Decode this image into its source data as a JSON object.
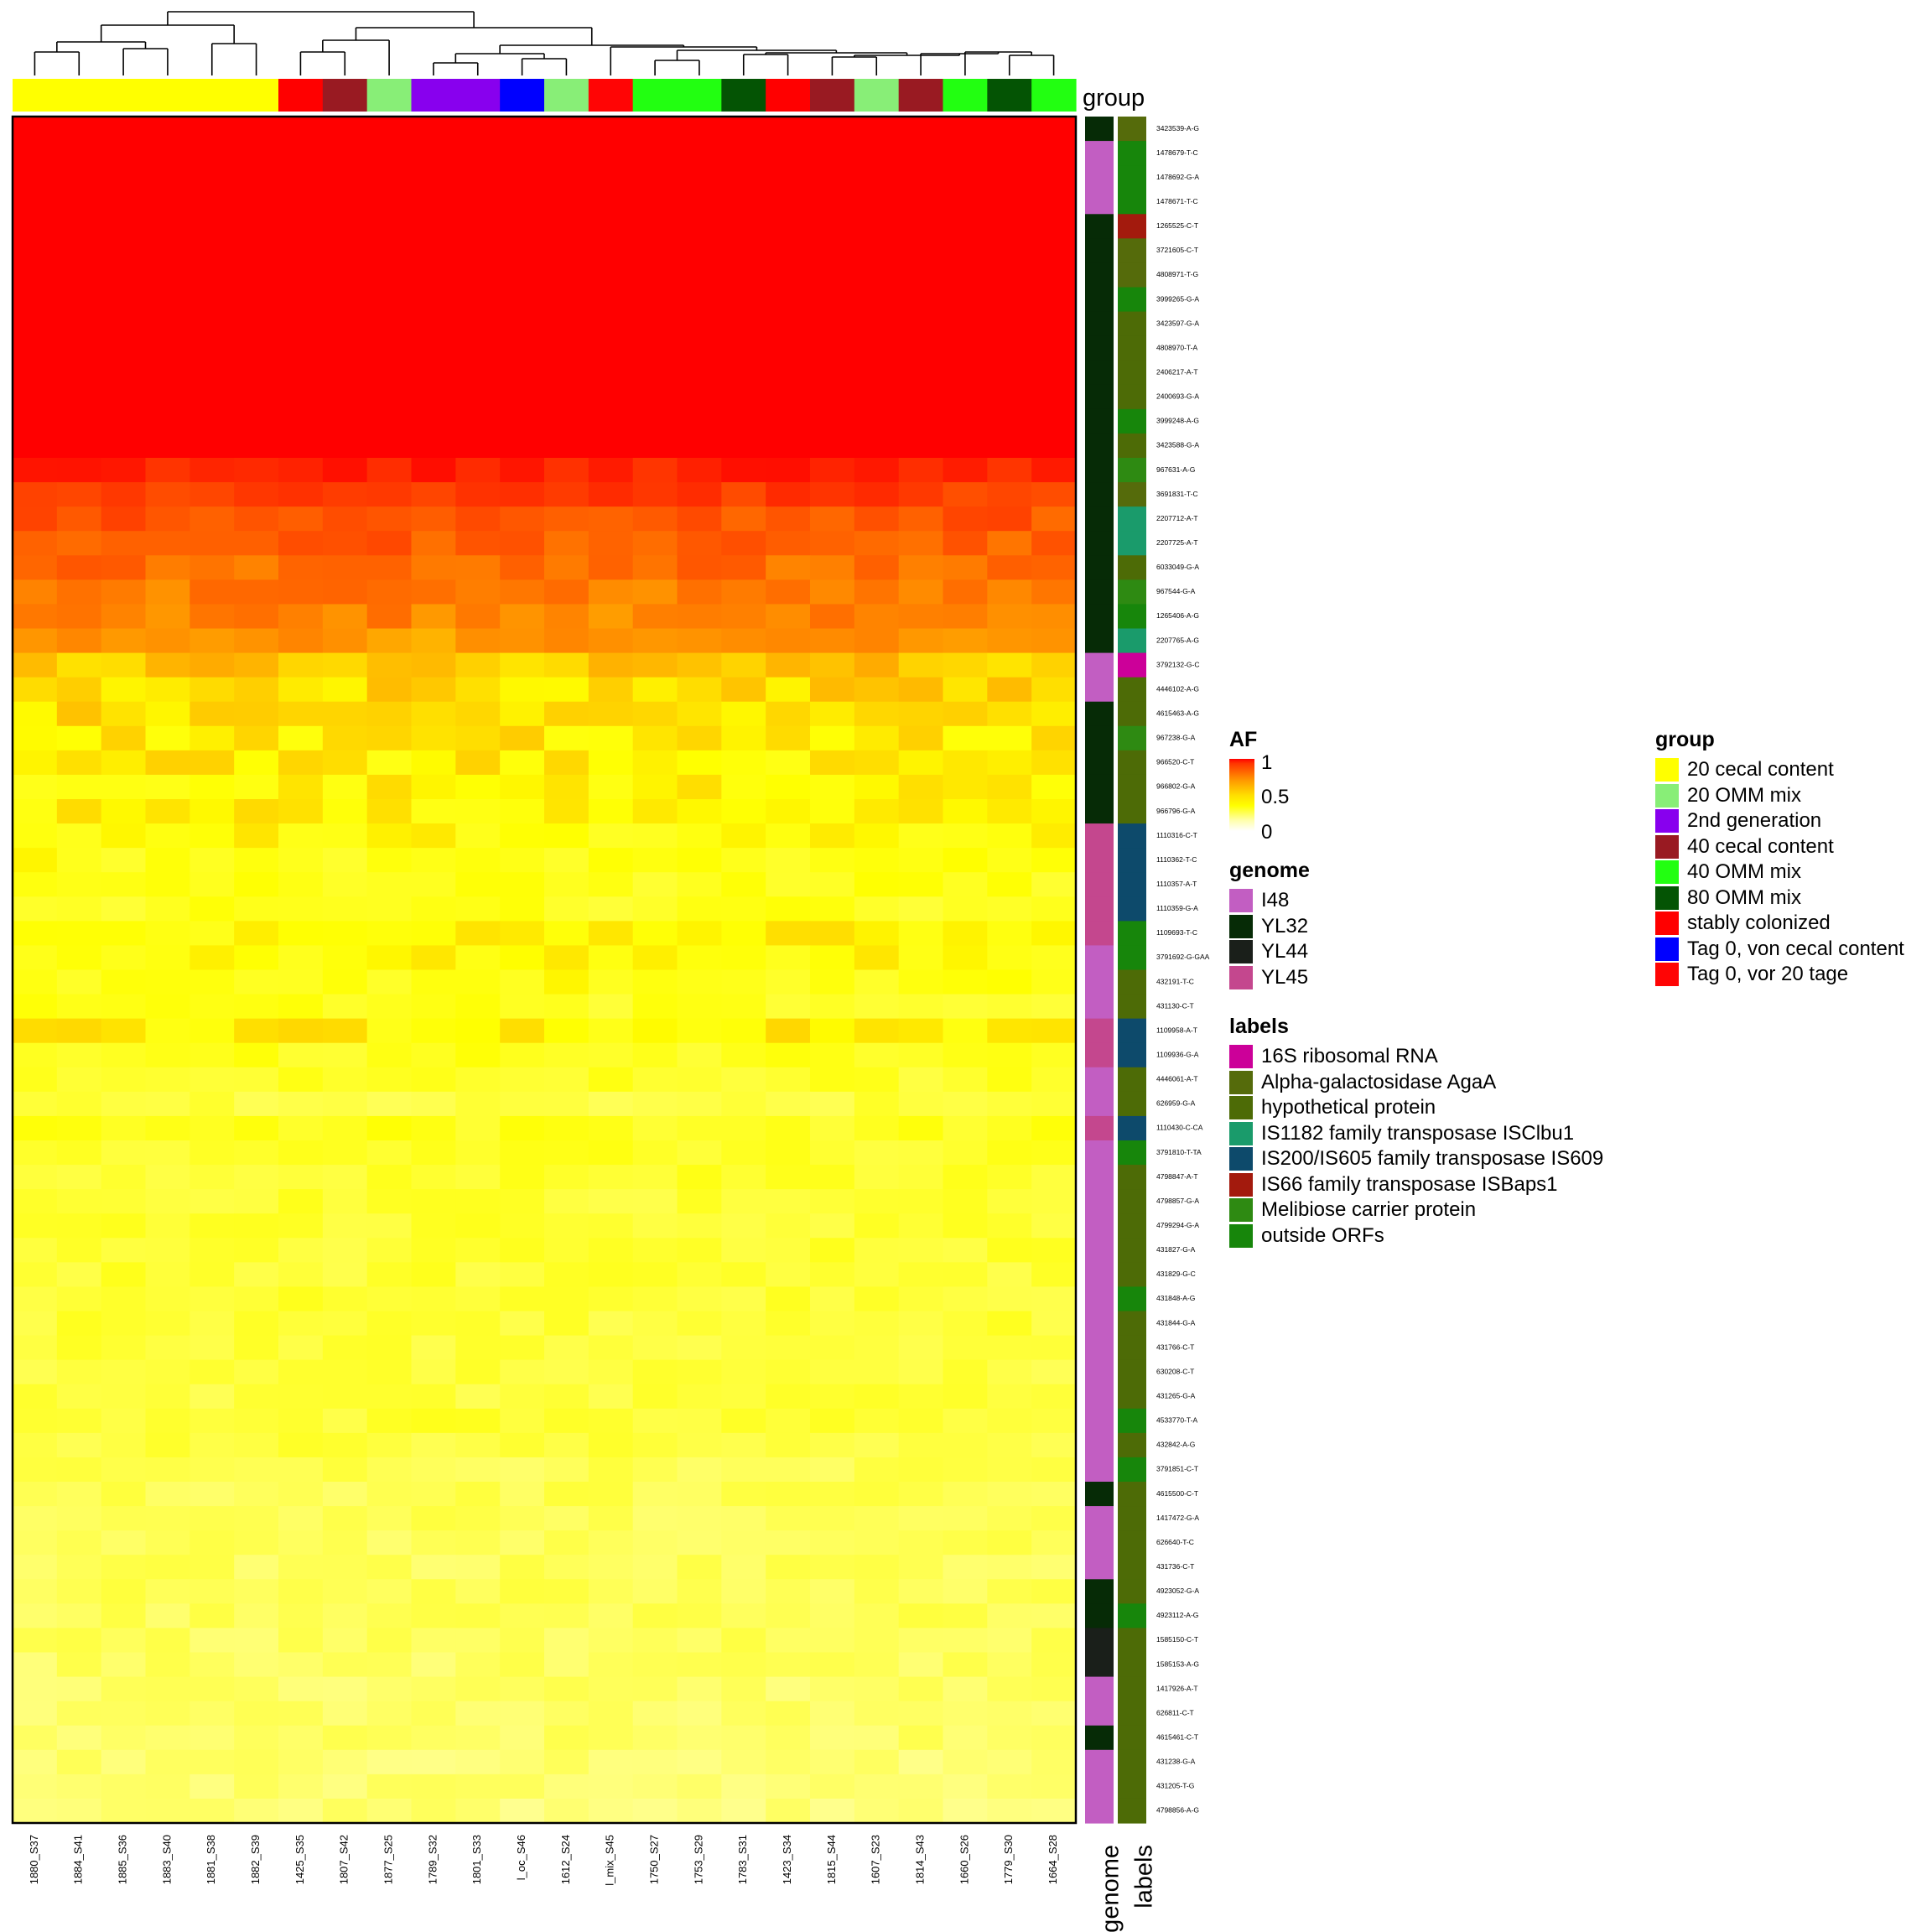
{
  "legends": {
    "af": {
      "title": "AF",
      "ticks": [
        "1",
        "0.5",
        "0"
      ]
    },
    "genome": {
      "title": "genome",
      "items": [
        {
          "label": "I48",
          "color": "#c25ec2"
        },
        {
          "label": "YL32",
          "color": "#062b06"
        },
        {
          "label": "YL44",
          "color": "#1a1f1a"
        },
        {
          "label": "YL45",
          "color": "#c4478e"
        }
      ]
    },
    "labels": {
      "title": "labels",
      "items": [
        {
          "label": "16S ribosomal RNA",
          "color": "#cc0099"
        },
        {
          "label": "Alpha-galactosidase AgaA",
          "color": "#556b0b"
        },
        {
          "label": "hypothetical protein",
          "color": "#4d6b06"
        },
        {
          "label": "IS1182 family transposase ISClbu1",
          "color": "#1a9b6b"
        },
        {
          "label": "IS200/IS605 family transposase IS609",
          "color": "#0d4a6b"
        },
        {
          "label": "IS66 family transposase ISBaps1",
          "color": "#a31a0d"
        },
        {
          "label": "Melibiose carrier protein",
          "color": "#2e8a12"
        },
        {
          "label": "outside ORFs",
          "color": "#17860b"
        }
      ]
    },
    "group": {
      "title": "group",
      "items": [
        {
          "label": "20 cecal content",
          "color": "#ffff00"
        },
        {
          "label": "20 OMM mix",
          "color": "#88ee77"
        },
        {
          "label": "2nd generation",
          "color": "#8800ee"
        },
        {
          "label": "40 cecal content",
          "color": "#991a22"
        },
        {
          "label": "40 OMM mix",
          "color": "#22ff11"
        },
        {
          "label": "80 OMM mix",
          "color": "#045404"
        },
        {
          "label": "stably colonized",
          "color": "#ff0000"
        },
        {
          "label": "Tag 0, von cecal content",
          "color": "#0000ff"
        },
        {
          "label": "Tag 0, vor 20 tage",
          "color": "#ff0505"
        }
      ]
    }
  },
  "chart_data": {
    "type": "heatmap",
    "value_name": "AF",
    "value_range": [
      0,
      1
    ],
    "group_track_label": "group",
    "genome_track_label": "genome",
    "labels_track_label": "labels",
    "columns": [
      "1880_S37",
      "1884_S41",
      "1885_S36",
      "1883_S40",
      "1881_S38",
      "1882_S39",
      "1425_S35",
      "1807_S42",
      "1877_S25",
      "1789_S32",
      "1801_S33",
      "l_oc_S46",
      "1612_S24",
      "l_mix_S45",
      "1750_S27",
      "1753_S29",
      "1783_S31",
      "1423_S34",
      "1815_S44",
      "1607_S23",
      "1814_S43",
      "1660_S26",
      "1779_S30",
      "1664_S28"
    ],
    "column_groups": [
      "20 cecal content",
      "20 cecal content",
      "20 cecal content",
      "20 cecal content",
      "20 cecal content",
      "20 cecal content",
      "stably colonized",
      "40 cecal content",
      "20 OMM mix",
      "2nd generation",
      "2nd generation",
      "Tag 0, von cecal content",
      "20 OMM mix",
      "Tag 0, vor 20 tage",
      "40 OMM mix",
      "40 OMM mix",
      "80 OMM mix",
      "stably colonized",
      "40 cecal content",
      "20 OMM mix",
      "40 cecal content",
      "40 OMM mix",
      "80 OMM mix",
      "40 OMM mix"
    ],
    "rows": [
      "3423539-A-G",
      "1478679-T-C",
      "1478692-G-A",
      "1478671-T-C",
      "1265525-C-T",
      "3721605-C-T",
      "4808971-T-G",
      "3999265-G-A",
      "3423597-G-A",
      "4808970-T-A",
      "2406217-A-T",
      "2400693-G-A",
      "3999248-A-G",
      "3423588-G-A",
      "967631-A-G",
      "3691831-T-C",
      "2207712-A-T",
      "2207725-A-T",
      "6033049-G-A",
      "967544-G-A",
      "1265406-A-G",
      "2207765-A-G",
      "3792132-G-C",
      "4446102-A-G",
      "4615463-A-G",
      "967238-G-A",
      "966520-C-T",
      "966802-G-A",
      "966796-G-A",
      "1110316-C-T",
      "1110362-T-C",
      "1110357-A-T",
      "1110359-G-A",
      "1109693-T-C",
      "3791692-G-GAA",
      "432191-T-C",
      "431130-C-T",
      "1109958-A-T",
      "1109936-G-A",
      "4446061-A-T",
      "626959-G-A",
      "1110430-C-CA",
      "3791810-T-TA",
      "4798847-A-T",
      "4798857-G-A",
      "4799294-G-A",
      "431827-G-A",
      "431829-G-C",
      "431848-A-G",
      "431844-G-A",
      "431766-C-T",
      "630208-C-T",
      "431265-G-A",
      "4533770-T-A",
      "432842-A-G",
      "3791851-C-T",
      "4615500-C-T",
      "1417472-G-A",
      "626640-T-C",
      "431736-C-T",
      "4923052-G-A",
      "4923112-A-G",
      "1585150-C-T",
      "1585153-A-G",
      "1417926-A-T",
      "626811-C-T",
      "4615461-C-T",
      "431238-G-A",
      "431205-T-G",
      "4798856-A-G"
    ],
    "row_genome": [
      "YL32",
      "I48",
      "I48",
      "I48",
      "YL32",
      "YL32",
      "YL32",
      "YL32",
      "YL32",
      "YL32",
      "YL32",
      "YL32",
      "YL32",
      "YL32",
      "YL32",
      "YL32",
      "YL32",
      "YL32",
      "YL32",
      "YL32",
      "YL32",
      "YL32",
      "I48",
      "I48",
      "YL32",
      "YL32",
      "YL32",
      "YL32",
      "YL32",
      "YL45",
      "YL45",
      "YL45",
      "YL45",
      "YL45",
      "I48",
      "I48",
      "I48",
      "YL45",
      "YL45",
      "I48",
      "I48",
      "YL45",
      "I48",
      "I48",
      "I48",
      "I48",
      "I48",
      "I48",
      "I48",
      "I48",
      "I48",
      "I48",
      "I48",
      "I48",
      "I48",
      "I48",
      "YL32",
      "I48",
      "I48",
      "I48",
      "YL32",
      "YL32",
      "YL44",
      "YL44",
      "I48",
      "I48",
      "YL32",
      "I48",
      "I48",
      "I48"
    ],
    "row_labels": [
      "Alpha-galactosidase AgaA",
      "outside ORFs",
      "outside ORFs",
      "outside ORFs",
      "IS66 family transposase ISBaps1",
      "Alpha-galactosidase AgaA",
      "Alpha-galactosidase AgaA",
      "outside ORFs",
      "hypothetical protein",
      "hypothetical protein",
      "hypothetical protein",
      "hypothetical protein",
      "outside ORFs",
      "hypothetical protein",
      "Melibiose carrier protein",
      "Alpha-galactosidase AgaA",
      "IS1182 family transposase ISClbu1",
      "IS1182 family transposase ISClbu1",
      "hypothetical protein",
      "Melibiose carrier protein",
      "outside ORFs",
      "IS1182 family transposase ISClbu1",
      "16S ribosomal RNA",
      "hypothetical protein",
      "hypothetical protein",
      "Melibiose carrier protein",
      "hypothetical protein",
      "hypothetical protein",
      "hypothetical protein",
      "IS200/IS605 family transposase IS609",
      "IS200/IS605 family transposase IS609",
      "IS200/IS605 family transposase IS609",
      "IS200/IS605 family transposase IS609",
      "outside ORFs",
      "outside ORFs",
      "hypothetical protein",
      "hypothetical protein",
      "IS200/IS605 family transposase IS609",
      "IS200/IS605 family transposase IS609",
      "hypothetical protein",
      "hypothetical protein",
      "IS200/IS605 family transposase IS609",
      "outside ORFs",
      "hypothetical protein",
      "hypothetical protein",
      "hypothetical protein",
      "hypothetical protein",
      "hypothetical protein",
      "outside ORFs",
      "hypothetical protein",
      "hypothetical protein",
      "hypothetical protein",
      "hypothetical protein",
      "outside ORFs",
      "hypothetical protein",
      "outside ORFs",
      "hypothetical protein",
      "hypothetical protein",
      "hypothetical protein",
      "hypothetical protein",
      "hypothetical protein",
      "outside ORFs",
      "hypothetical protein",
      "hypothetical protein",
      "hypothetical protein",
      "hypothetical protein",
      "hypothetical protein",
      "hypothetical protein",
      "hypothetical protein",
      "hypothetical protein"
    ],
    "row_mean_af": [
      1.0,
      1.0,
      1.0,
      1.0,
      1.0,
      1.0,
      1.0,
      1.0,
      1.0,
      1.0,
      1.0,
      1.0,
      1.0,
      1.0,
      0.92,
      0.85,
      0.8,
      0.78,
      0.75,
      0.72,
      0.7,
      0.66,
      0.58,
      0.55,
      0.54,
      0.52,
      0.51,
      0.5,
      0.5,
      0.48,
      0.46,
      0.45,
      0.44,
      0.5,
      0.48,
      0.46,
      0.44,
      0.5,
      0.44,
      0.42,
      0.38,
      0.44,
      0.42,
      0.41,
      0.4,
      0.4,
      0.4,
      0.4,
      0.4,
      0.39,
      0.39,
      0.38,
      0.38,
      0.4,
      0.38,
      0.34,
      0.34,
      0.33,
      0.33,
      0.32,
      0.34,
      0.33,
      0.32,
      0.31,
      0.3,
      0.3,
      0.3,
      0.28,
      0.28,
      0.27
    ]
  }
}
